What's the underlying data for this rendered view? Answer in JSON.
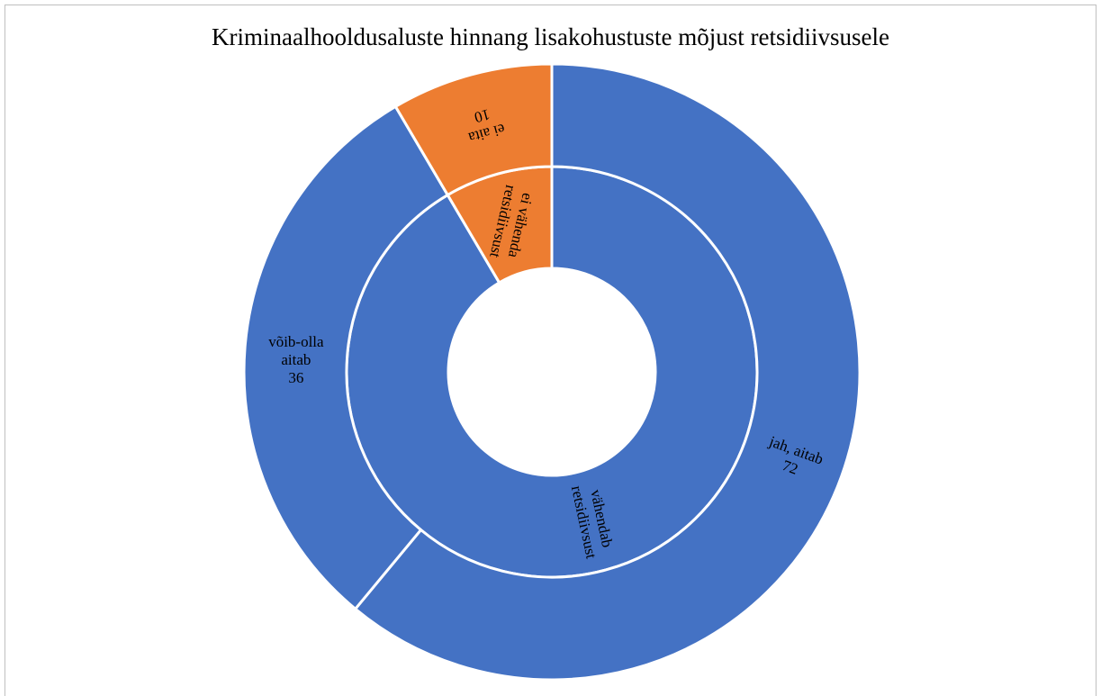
{
  "chart_data": {
    "type": "sunburst",
    "title": "Kriminaalhooldusaluste hinnang lisakohustuste mõjust retsidiivsusele",
    "rings": [
      {
        "categories": [
          "vähendab retsidiivsust",
          "ei vähenda retsidiivsust"
        ],
        "values": [
          108,
          10
        ],
        "colors": [
          "#4472c4",
          "#ed7d31"
        ]
      },
      {
        "categories": [
          "jah, aitab",
          "võib-olla aitab",
          "ei aita"
        ],
        "values": [
          72,
          36,
          10
        ],
        "colors": [
          "#4472c4",
          "#4472c4",
          "#ed7d31"
        ]
      }
    ]
  }
}
